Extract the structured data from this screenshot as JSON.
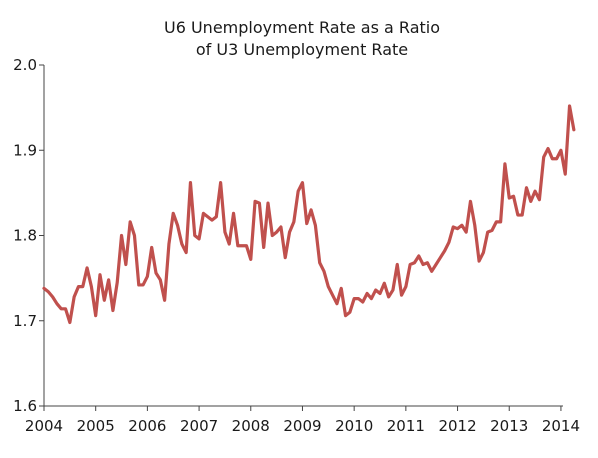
{
  "chart_data": {
    "type": "line",
    "title_lines": [
      "U6 Unemployment Rate as a Ratio",
      "of U3 Unemployment Rate"
    ],
    "xlabel": "",
    "ylabel": "",
    "xlim": [
      2004.0,
      2014.04
    ],
    "ylim": [
      1.6,
      2.0
    ],
    "x_ticks": [
      2004,
      2005,
      2006,
      2007,
      2008,
      2009,
      2010,
      2011,
      2012,
      2013,
      2014
    ],
    "x_tick_labels": [
      "2004",
      "2005",
      "2006",
      "2007",
      "2008",
      "2009",
      "2010",
      "2011",
      "2012",
      "2013",
      "2014"
    ],
    "y_ticks": [
      1.6,
      1.7,
      1.8,
      1.9,
      2.0
    ],
    "y_tick_labels": [
      "1.6",
      "1.7",
      "1.8",
      "1.9",
      "2.0"
    ],
    "grid": false,
    "legend": "none",
    "series_color": "#c0504d",
    "series": [
      {
        "start": 2004.0,
        "step_months": 1,
        "values": [
          1.738,
          1.734,
          1.728,
          1.72,
          1.714,
          1.714,
          1.698,
          1.728,
          1.74,
          1.74,
          1.762,
          1.74,
          1.706,
          1.754,
          1.724,
          1.748,
          1.712,
          1.745,
          1.8,
          1.766,
          1.816,
          1.8,
          1.742,
          1.742,
          1.752,
          1.786,
          1.756,
          1.748,
          1.724,
          1.79,
          1.826,
          1.812,
          1.79,
          1.78,
          1.862,
          1.8,
          1.796,
          1.826,
          1.822,
          1.818,
          1.822,
          1.862,
          1.804,
          1.79,
          1.826,
          1.788,
          1.788,
          1.788,
          1.772,
          1.84,
          1.838,
          1.786,
          1.838,
          1.8,
          1.804,
          1.81,
          1.774,
          1.804,
          1.816,
          1.852,
          1.862,
          1.814,
          1.83,
          1.812,
          1.768,
          1.758,
          1.74,
          1.73,
          1.72,
          1.738,
          1.706,
          1.71,
          1.726,
          1.726,
          1.722,
          1.732,
          1.726,
          1.736,
          1.732,
          1.744,
          1.728,
          1.736,
          1.766,
          1.73,
          1.74,
          1.766,
          1.768,
          1.776,
          1.766,
          1.768,
          1.758,
          1.766,
          1.774,
          1.782,
          1.792,
          1.81,
          1.808,
          1.812,
          1.804,
          1.84,
          1.812,
          1.77,
          1.78,
          1.804,
          1.806,
          1.816,
          1.816,
          1.884,
          1.844,
          1.846,
          1.824,
          1.824,
          1.856,
          1.84,
          1.852,
          1.842,
          1.892,
          1.902,
          1.89,
          1.89,
          1.9,
          1.872,
          1.952,
          1.924
        ]
      }
    ]
  }
}
